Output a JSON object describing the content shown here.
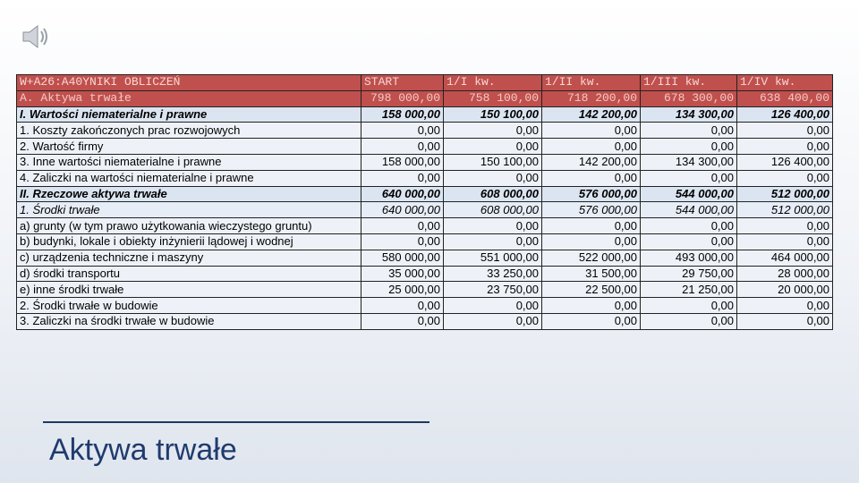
{
  "table": {
    "header": [
      "W+A26:A40YNIKI OBLICZEŃ",
      "START",
      "1/I kw.",
      "1/II kw.",
      "1/III kw.",
      "1/IV kw."
    ],
    "rows": [
      [
        "A. Aktywa trwałe",
        "798 000,00",
        "758 100,00",
        "718 200,00",
        "678 300,00",
        "638 400,00"
      ],
      [
        "I. Wartości niematerialne i prawne",
        "158 000,00",
        "150 100,00",
        "142 200,00",
        "134 300,00",
        "126 400,00"
      ],
      [
        "1. Koszty zakończonych prac rozwojowych",
        "0,00",
        "0,00",
        "0,00",
        "0,00",
        "0,00"
      ],
      [
        "2. Wartość firmy",
        "0,00",
        "0,00",
        "0,00",
        "0,00",
        "0,00"
      ],
      [
        "3. Inne wartości niematerialne i prawne",
        "158 000,00",
        "150 100,00",
        "142 200,00",
        "134 300,00",
        "126 400,00"
      ],
      [
        "4. Zaliczki na wartości niematerialne i prawne",
        "0,00",
        "0,00",
        "0,00",
        "0,00",
        "0,00"
      ],
      [
        "II. Rzeczowe aktywa trwałe",
        "640 000,00",
        "608 000,00",
        "576 000,00",
        "544 000,00",
        "512 000,00"
      ],
      [
        "1. Środki trwałe",
        "640 000,00",
        "608 000,00",
        "576 000,00",
        "544 000,00",
        "512 000,00"
      ],
      [
        "a) grunty (w tym prawo użytkowania wieczystego gruntu)",
        "0,00",
        "0,00",
        "0,00",
        "0,00",
        "0,00"
      ],
      [
        "b) budynki,  lokale i obiekty inżynierii lądowej i wodnej",
        "0,00",
        "0,00",
        "0,00",
        "0,00",
        "0,00"
      ],
      [
        "c) urządzenia techniczne i maszyny",
        "580 000,00",
        "551 000,00",
        "522 000,00",
        "493 000,00",
        "464 000,00"
      ],
      [
        "d) środki transportu",
        "35 000,00",
        "33 250,00",
        "31 500,00",
        "29 750,00",
        "28 000,00"
      ],
      [
        "e) inne środki trwałe",
        "25 000,00",
        "23 750,00",
        "22 500,00",
        "21 250,00",
        "20 000,00"
      ],
      [
        "2. Środki trwałe w budowie",
        "0,00",
        "0,00",
        "0,00",
        "0,00",
        "0,00"
      ],
      [
        "3. Zaliczki na środki trwałe w budowie",
        "0,00",
        "0,00",
        "0,00",
        "0,00",
        "0,00"
      ]
    ]
  },
  "title": "Aktywa trwałe"
}
